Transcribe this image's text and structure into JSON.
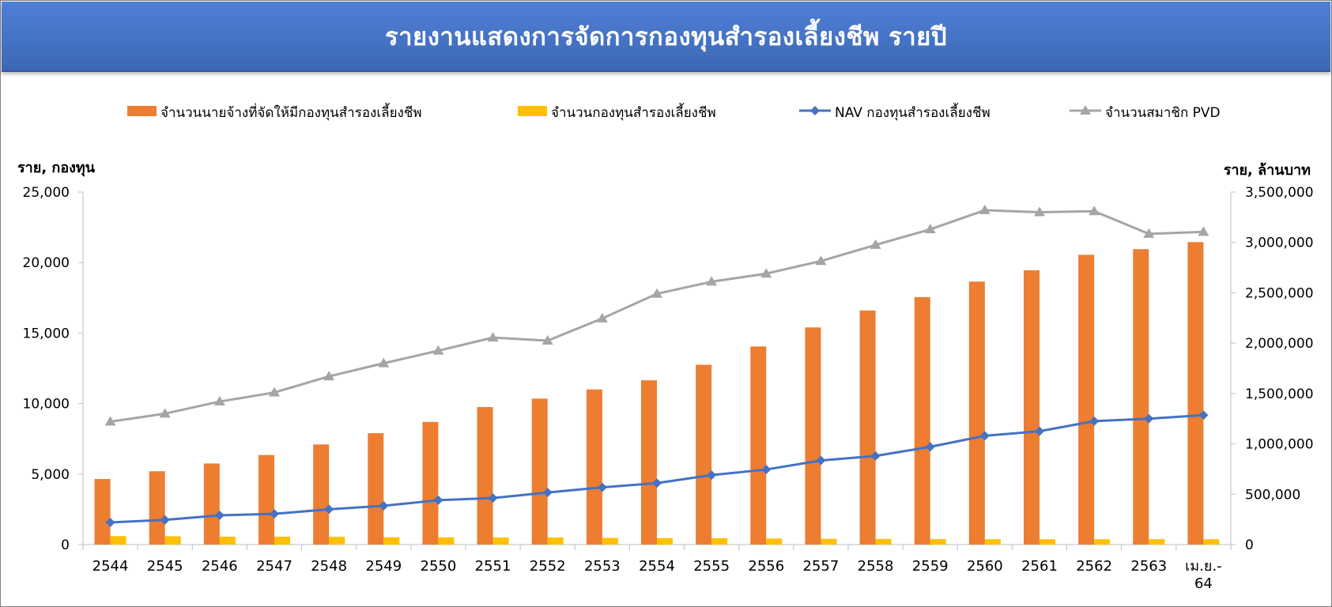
{
  "title": "รายงานแสดงการจัดการกองทุนสำรองเลี้ยงชีพ รายปี",
  "colors": {
    "employers": "#ED7D31",
    "funds": "#FFC000",
    "nav": "#4472C4",
    "members": "#A5A5A5",
    "title_bg": "#4472C4"
  },
  "chart_data": {
    "type": "bar",
    "title": "รายงานแสดงการจัดการกองทุนสำรองเลี้ยงชีพ รายปี",
    "categories": [
      "2544",
      "2545",
      "2546",
      "2547",
      "2548",
      "2549",
      "2550",
      "2551",
      "2552",
      "2553",
      "2554",
      "2555",
      "2556",
      "2557",
      "2558",
      "2559",
      "2560",
      "2561",
      "2562",
      "2563",
      "เม.ย.-64"
    ],
    "y_left_label": "ราย, กองทุน",
    "y_right_label": "ราย, ล้านบาท",
    "y_left_lim": [
      0,
      25000
    ],
    "y_right_lim": [
      0,
      3500000
    ],
    "y_left_ticks": [
      "0",
      "5,000",
      "10,000",
      "15,000",
      "20,000",
      "25,000"
    ],
    "y_right_ticks": [
      "0",
      "500,000",
      "1,000,000",
      "1,500,000",
      "2,000,000",
      "2,500,000",
      "3,000,000",
      "3,500,000"
    ],
    "legend_position": "top",
    "series": [
      {
        "name": "จำนวนนายจ้างที่จัดให้มีกองทุนสำรองเลี้ยงชีพ",
        "type": "bar",
        "axis": "left",
        "values": [
          4650,
          5200,
          5750,
          6350,
          7100,
          7900,
          8700,
          9750,
          10350,
          11000,
          11650,
          12750,
          14050,
          15400,
          16600,
          17550,
          18650,
          19450,
          20550,
          20950,
          21450
        ]
      },
      {
        "name": "จำนวนกองทุนสำรองเลี้ยงชีพ",
        "type": "bar",
        "axis": "left",
        "values": [
          600,
          590,
          560,
          560,
          550,
          520,
          510,
          500,
          500,
          470,
          460,
          450,
          430,
          410,
          400,
          390,
          380,
          380,
          380,
          380,
          380
        ]
      },
      {
        "name": "NAV กองทุนสำรองเลี้ยงชีพ",
        "type": "line",
        "axis": "right",
        "marker": "diamond",
        "values": [
          220000,
          245000,
          290000,
          305000,
          350000,
          385000,
          440000,
          462000,
          517000,
          568000,
          610000,
          690000,
          745000,
          835000,
          880000,
          970000,
          1080000,
          1125000,
          1225000,
          1250000,
          1285000
        ]
      },
      {
        "name": "จำนวนสมาชิก PVD",
        "type": "line",
        "axis": "right",
        "marker": "triangle",
        "values": [
          1220000,
          1300000,
          1420000,
          1510000,
          1670000,
          1800000,
          1925000,
          2055000,
          2025000,
          2245000,
          2490000,
          2610000,
          2690000,
          2815000,
          2975000,
          3130000,
          3320000,
          3300000,
          3310000,
          3085000,
          3105000
        ]
      }
    ]
  }
}
